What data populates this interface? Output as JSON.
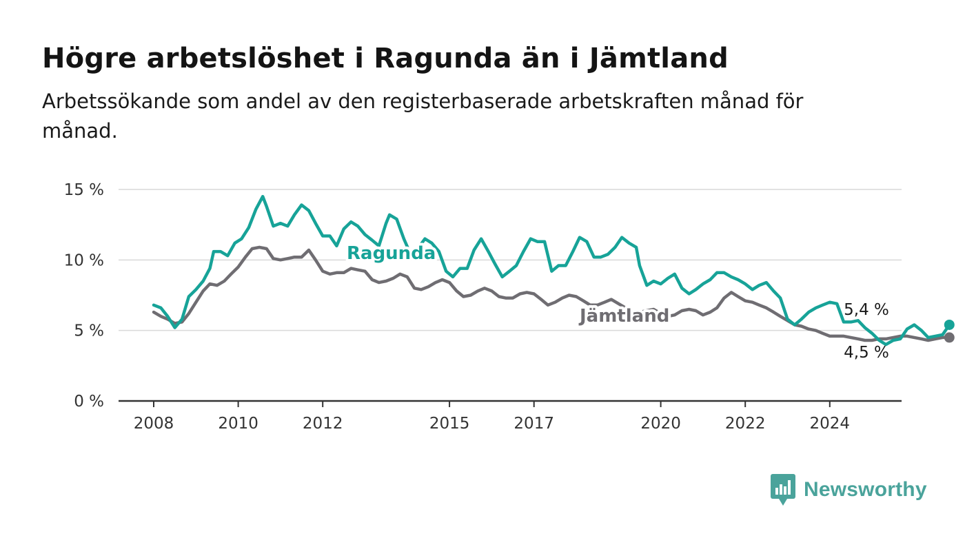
{
  "title": "Högre arbetslöshet i Ragunda än i Jämtland",
  "subtitle": "Arbetssökande som andel av den registerbaserade arbetskraften månad för månad.",
  "brand": {
    "name": "Newsworthy",
    "logo_icon": "newsworthy-bar-chart-icon",
    "color": "#4aa39b"
  },
  "chart_data": {
    "type": "line",
    "x_unit": "year",
    "x_ticks": [
      2008,
      2010,
      2012,
      2015,
      2017,
      2020,
      2022,
      2024
    ],
    "x_tick_labels": [
      "2008",
      "2010",
      "2012",
      "2015",
      "2017",
      "2020",
      "2022",
      "2024"
    ],
    "y_ticks": [
      0,
      5,
      10,
      15
    ],
    "y_tick_labels": [
      "0 %",
      "5 %",
      "10 %",
      "15 %"
    ],
    "ylim": [
      0,
      15
    ],
    "grid": true,
    "series": [
      {
        "name": "Ragunda",
        "color": "#17a398",
        "end_label": "5,4 %",
        "points": [
          [
            2008.0,
            6.8
          ],
          [
            2008.17,
            6.6
          ],
          [
            2008.33,
            6.0
          ],
          [
            2008.5,
            5.2
          ],
          [
            2008.67,
            5.8
          ],
          [
            2008.83,
            7.4
          ],
          [
            2009.0,
            7.9
          ],
          [
            2009.17,
            8.5
          ],
          [
            2009.33,
            9.4
          ],
          [
            2009.42,
            10.6
          ],
          [
            2009.58,
            10.6
          ],
          [
            2009.75,
            10.3
          ],
          [
            2009.92,
            11.2
          ],
          [
            2010.08,
            11.5
          ],
          [
            2010.25,
            12.3
          ],
          [
            2010.42,
            13.6
          ],
          [
            2010.58,
            14.5
          ],
          [
            2010.67,
            13.8
          ],
          [
            2010.83,
            12.4
          ],
          [
            2011.0,
            12.6
          ],
          [
            2011.17,
            12.4
          ],
          [
            2011.33,
            13.2
          ],
          [
            2011.5,
            13.9
          ],
          [
            2011.67,
            13.5
          ],
          [
            2011.83,
            12.6
          ],
          [
            2012.0,
            11.7
          ],
          [
            2012.17,
            11.7
          ],
          [
            2012.33,
            11.0
          ],
          [
            2012.5,
            12.2
          ],
          [
            2012.67,
            12.7
          ],
          [
            2012.83,
            12.4
          ],
          [
            2013.0,
            11.8
          ],
          [
            2013.17,
            11.4
          ],
          [
            2013.33,
            11.0
          ],
          [
            2013.5,
            12.6
          ],
          [
            2013.58,
            13.2
          ],
          [
            2013.75,
            12.9
          ],
          [
            2013.92,
            11.5
          ],
          [
            2014.08,
            10.4
          ],
          [
            2014.25,
            10.8
          ],
          [
            2014.42,
            11.5
          ],
          [
            2014.58,
            11.2
          ],
          [
            2014.75,
            10.6
          ],
          [
            2014.92,
            9.2
          ],
          [
            2015.08,
            8.8
          ],
          [
            2015.25,
            9.4
          ],
          [
            2015.42,
            9.4
          ],
          [
            2015.58,
            10.7
          ],
          [
            2015.75,
            11.5
          ],
          [
            2015.92,
            10.6
          ],
          [
            2016.08,
            9.7
          ],
          [
            2016.25,
            8.8
          ],
          [
            2016.42,
            9.2
          ],
          [
            2016.58,
            9.6
          ],
          [
            2016.75,
            10.6
          ],
          [
            2016.92,
            11.5
          ],
          [
            2017.08,
            11.3
          ],
          [
            2017.25,
            11.3
          ],
          [
            2017.42,
            9.2
          ],
          [
            2017.58,
            9.6
          ],
          [
            2017.75,
            9.6
          ],
          [
            2017.92,
            10.6
          ],
          [
            2018.08,
            11.6
          ],
          [
            2018.25,
            11.3
          ],
          [
            2018.42,
            10.2
          ],
          [
            2018.58,
            10.2
          ],
          [
            2018.75,
            10.4
          ],
          [
            2018.92,
            10.9
          ],
          [
            2019.08,
            11.6
          ],
          [
            2019.25,
            11.2
          ],
          [
            2019.42,
            10.9
          ],
          [
            2019.5,
            9.6
          ],
          [
            2019.67,
            8.2
          ],
          [
            2019.83,
            8.5
          ],
          [
            2020.0,
            8.3
          ],
          [
            2020.17,
            8.7
          ],
          [
            2020.33,
            9.0
          ],
          [
            2020.5,
            8.0
          ],
          [
            2020.67,
            7.6
          ],
          [
            2020.83,
            7.9
          ],
          [
            2021.0,
            8.3
          ],
          [
            2021.17,
            8.6
          ],
          [
            2021.33,
            9.1
          ],
          [
            2021.5,
            9.1
          ],
          [
            2021.67,
            8.8
          ],
          [
            2021.83,
            8.6
          ],
          [
            2022.0,
            8.3
          ],
          [
            2022.17,
            7.9
          ],
          [
            2022.33,
            8.2
          ],
          [
            2022.5,
            8.4
          ],
          [
            2022.67,
            7.8
          ],
          [
            2022.83,
            7.3
          ],
          [
            2023.0,
            5.8
          ],
          [
            2023.17,
            5.4
          ],
          [
            2023.33,
            5.8
          ],
          [
            2023.5,
            6.3
          ],
          [
            2023.67,
            6.6
          ],
          [
            2023.83,
            6.8
          ],
          [
            2024.0,
            7.0
          ],
          [
            2024.17,
            6.9
          ],
          [
            2024.33,
            5.6
          ],
          [
            2024.5,
            5.6
          ],
          [
            2024.67,
            5.7
          ],
          [
            2024.83,
            5.2
          ],
          [
            2025.0,
            4.8
          ],
          [
            2025.17,
            4.3
          ],
          [
            2025.33,
            4.0
          ],
          [
            2025.5,
            4.3
          ],
          [
            2025.67,
            4.4
          ],
          [
            2025.83,
            5.1
          ],
          [
            2026.0,
            5.4
          ],
          [
            2026.17,
            5.0
          ],
          [
            2026.33,
            4.5
          ],
          [
            2026.5,
            4.6
          ],
          [
            2026.67,
            4.7
          ],
          [
            2026.83,
            5.4
          ]
        ]
      },
      {
        "name": "Jämtland",
        "color": "#6f6d72",
        "end_label": "4,5 %",
        "points": [
          [
            2008.0,
            6.3
          ],
          [
            2008.17,
            6.0
          ],
          [
            2008.33,
            5.8
          ],
          [
            2008.5,
            5.5
          ],
          [
            2008.67,
            5.6
          ],
          [
            2008.83,
            6.2
          ],
          [
            2009.0,
            7.0
          ],
          [
            2009.17,
            7.8
          ],
          [
            2009.33,
            8.3
          ],
          [
            2009.5,
            8.2
          ],
          [
            2009.67,
            8.5
          ],
          [
            2009.83,
            9.0
          ],
          [
            2010.0,
            9.5
          ],
          [
            2010.17,
            10.2
          ],
          [
            2010.33,
            10.8
          ],
          [
            2010.5,
            10.9
          ],
          [
            2010.67,
            10.8
          ],
          [
            2010.83,
            10.1
          ],
          [
            2011.0,
            10.0
          ],
          [
            2011.17,
            10.1
          ],
          [
            2011.33,
            10.2
          ],
          [
            2011.5,
            10.2
          ],
          [
            2011.67,
            10.7
          ],
          [
            2011.83,
            10.0
          ],
          [
            2012.0,
            9.2
          ],
          [
            2012.17,
            9.0
          ],
          [
            2012.33,
            9.1
          ],
          [
            2012.5,
            9.1
          ],
          [
            2012.67,
            9.4
          ],
          [
            2012.83,
            9.3
          ],
          [
            2013.0,
            9.2
          ],
          [
            2013.17,
            8.6
          ],
          [
            2013.33,
            8.4
          ],
          [
            2013.5,
            8.5
          ],
          [
            2013.67,
            8.7
          ],
          [
            2013.83,
            9.0
          ],
          [
            2014.0,
            8.8
          ],
          [
            2014.17,
            8.0
          ],
          [
            2014.33,
            7.9
          ],
          [
            2014.5,
            8.1
          ],
          [
            2014.67,
            8.4
          ],
          [
            2014.83,
            8.6
          ],
          [
            2015.0,
            8.4
          ],
          [
            2015.17,
            7.8
          ],
          [
            2015.33,
            7.4
          ],
          [
            2015.5,
            7.5
          ],
          [
            2015.67,
            7.8
          ],
          [
            2015.83,
            8.0
          ],
          [
            2016.0,
            7.8
          ],
          [
            2016.17,
            7.4
          ],
          [
            2016.33,
            7.3
          ],
          [
            2016.5,
            7.3
          ],
          [
            2016.67,
            7.6
          ],
          [
            2016.83,
            7.7
          ],
          [
            2017.0,
            7.6
          ],
          [
            2017.17,
            7.2
          ],
          [
            2017.33,
            6.8
          ],
          [
            2017.5,
            7.0
          ],
          [
            2017.67,
            7.3
          ],
          [
            2017.83,
            7.5
          ],
          [
            2018.0,
            7.4
          ],
          [
            2018.17,
            7.1
          ],
          [
            2018.33,
            6.8
          ],
          [
            2018.5,
            6.8
          ],
          [
            2018.67,
            7.0
          ],
          [
            2018.83,
            7.2
          ],
          [
            2019.0,
            6.9
          ],
          [
            2019.17,
            6.6
          ],
          [
            2019.33,
            6.3
          ],
          [
            2019.5,
            6.3
          ],
          [
            2019.67,
            6.4
          ],
          [
            2019.83,
            6.5
          ],
          [
            2020.0,
            6.2
          ],
          [
            2020.17,
            6.0
          ],
          [
            2020.33,
            6.1
          ],
          [
            2020.5,
            6.4
          ],
          [
            2020.67,
            6.5
          ],
          [
            2020.83,
            6.4
          ],
          [
            2021.0,
            6.1
          ],
          [
            2021.17,
            6.3
          ],
          [
            2021.33,
            6.6
          ],
          [
            2021.5,
            7.3
          ],
          [
            2021.67,
            7.7
          ],
          [
            2021.83,
            7.4
          ],
          [
            2022.0,
            7.1
          ],
          [
            2022.17,
            7.0
          ],
          [
            2022.33,
            6.8
          ],
          [
            2022.5,
            6.6
          ],
          [
            2022.67,
            6.3
          ],
          [
            2022.83,
            6.0
          ],
          [
            2023.0,
            5.7
          ],
          [
            2023.17,
            5.4
          ],
          [
            2023.33,
            5.3
          ],
          [
            2023.5,
            5.1
          ],
          [
            2023.67,
            5.0
          ],
          [
            2023.83,
            4.8
          ],
          [
            2024.0,
            4.6
          ],
          [
            2024.17,
            4.6
          ],
          [
            2024.33,
            4.6
          ],
          [
            2024.5,
            4.5
          ],
          [
            2024.67,
            4.4
          ],
          [
            2024.83,
            4.3
          ],
          [
            2025.0,
            4.3
          ],
          [
            2025.17,
            4.4
          ],
          [
            2025.33,
            4.4
          ],
          [
            2025.5,
            4.5
          ],
          [
            2025.67,
            4.6
          ],
          [
            2025.83,
            4.6
          ],
          [
            2026.0,
            4.5
          ],
          [
            2026.17,
            4.4
          ],
          [
            2026.33,
            4.3
          ],
          [
            2026.5,
            4.4
          ],
          [
            2026.67,
            4.5
          ],
          [
            2026.83,
            4.5
          ]
        ]
      }
    ]
  }
}
